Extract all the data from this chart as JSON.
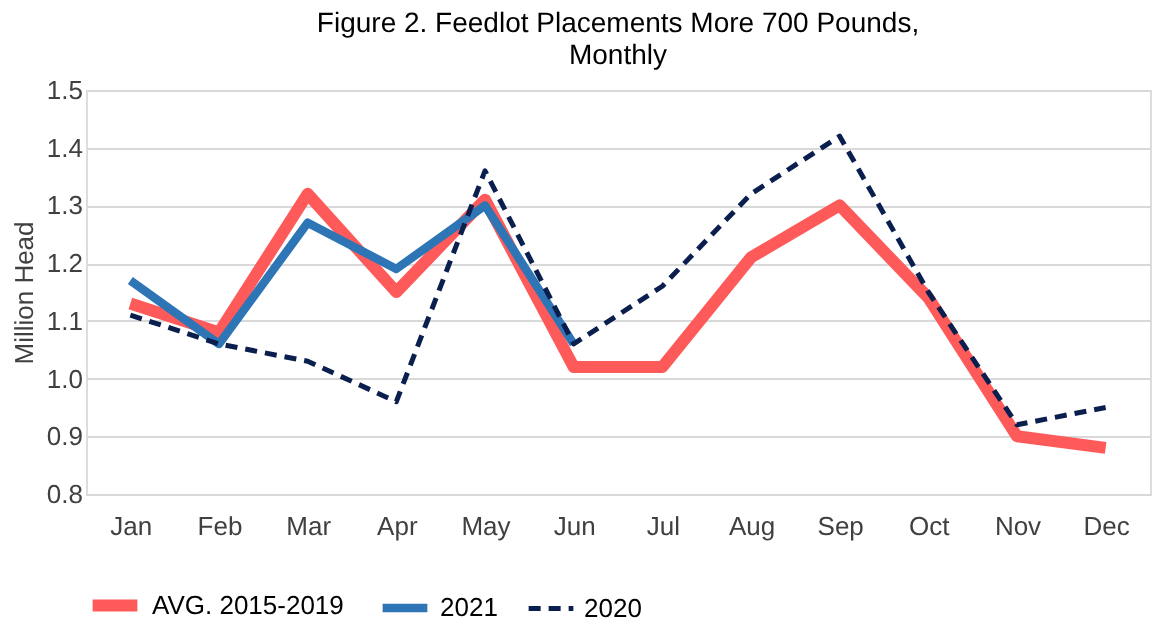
{
  "chart_data": {
    "type": "line",
    "title": "Figure 2. Feedlot Placements More 700 Pounds, Monthly",
    "ylabel": "Million Head",
    "categories": [
      "Jan",
      "Feb",
      "Mar",
      "Apr",
      "May",
      "Jun",
      "Jul",
      "Aug",
      "Sep",
      "Oct",
      "Nov",
      "Dec"
    ],
    "series": [
      {
        "name": "AVG. 2015-2019",
        "color": "#ff5a5a",
        "line_style": "solid",
        "values": [
          1.13,
          1.08,
          1.32,
          1.15,
          1.31,
          1.02,
          1.02,
          1.21,
          1.3,
          1.14,
          0.9,
          0.88
        ]
      },
      {
        "name": "2021",
        "color": "#2e75b6",
        "line_style": "solid",
        "values": [
          1.17,
          1.06,
          1.27,
          1.19,
          1.3,
          1.06,
          null,
          null,
          null,
          null,
          null,
          null
        ]
      },
      {
        "name": "2020",
        "color": "#0b1f4f",
        "line_style": "dashed",
        "values": [
          1.11,
          1.06,
          1.03,
          0.96,
          1.36,
          1.06,
          1.16,
          1.32,
          1.42,
          1.15,
          0.92,
          0.95
        ]
      }
    ],
    "ylim": [
      0.8,
      1.5
    ],
    "yticks": [
      {
        "value": 0.8,
        "label": "0.8"
      },
      {
        "value": 0.9,
        "label": "0.9"
      },
      {
        "value": 1.0,
        "label": "1.0"
      },
      {
        "value": 1.1,
        "label": "1.1"
      },
      {
        "value": 1.2,
        "label": "1.2"
      },
      {
        "value": 1.3,
        "label": "1.3"
      },
      {
        "value": 1.4,
        "label": "1.4"
      },
      {
        "value": 1.5,
        "label": "1.5"
      }
    ],
    "grid": "y",
    "legend": "bottom"
  }
}
